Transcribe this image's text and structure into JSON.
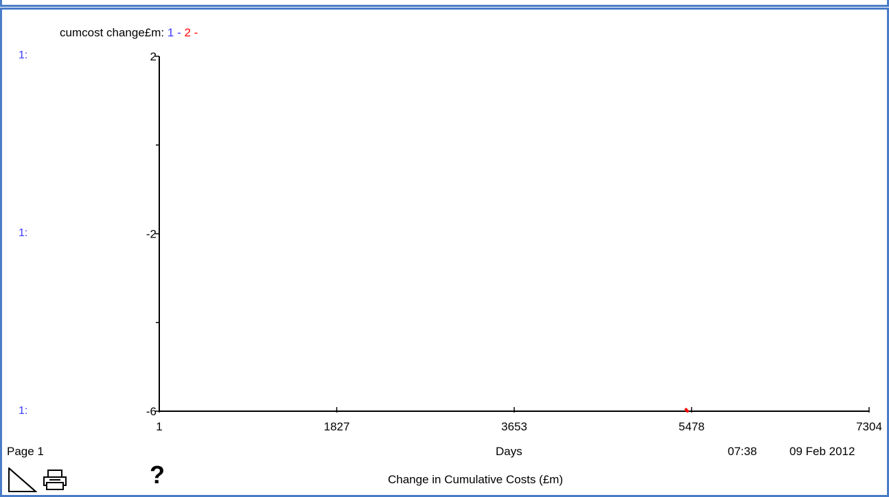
{
  "legend": {
    "label": "cumcost change£m:",
    "series_1": "1",
    "series_2": "2",
    "dash": "-"
  },
  "scale_labels": [
    "1:",
    "1:",
    "1:"
  ],
  "footer": {
    "page": "Page 1",
    "xlabel": "Days",
    "time": "07:38",
    "date": "09 Feb 2012",
    "caption": "Change in Cumulative Costs (£m)"
  },
  "icons": {
    "page": "page-corner-icon",
    "print": "printer-icon",
    "help": "?"
  },
  "colors": {
    "frame": "#4a7cc7",
    "series_1": "#3a3aff",
    "series_2": "#ff0000"
  },
  "chart_data": {
    "type": "line",
    "title": "",
    "xlabel": "Days",
    "ylabel": "",
    "xlim": [
      1,
      7304
    ],
    "ylim": [
      -6,
      2
    ],
    "x_ticks": [
      1,
      1827,
      3653,
      5478,
      7304
    ],
    "y_ticks": [
      2,
      -2,
      -6
    ],
    "series": [
      {
        "name": "1",
        "color": "#3a3aff",
        "points": []
      },
      {
        "name": "2",
        "color": "#ff0000",
        "points": [
          [
            5420,
            -5.96
          ],
          [
            5435,
            -6.0
          ]
        ]
      }
    ],
    "grid": false
  }
}
